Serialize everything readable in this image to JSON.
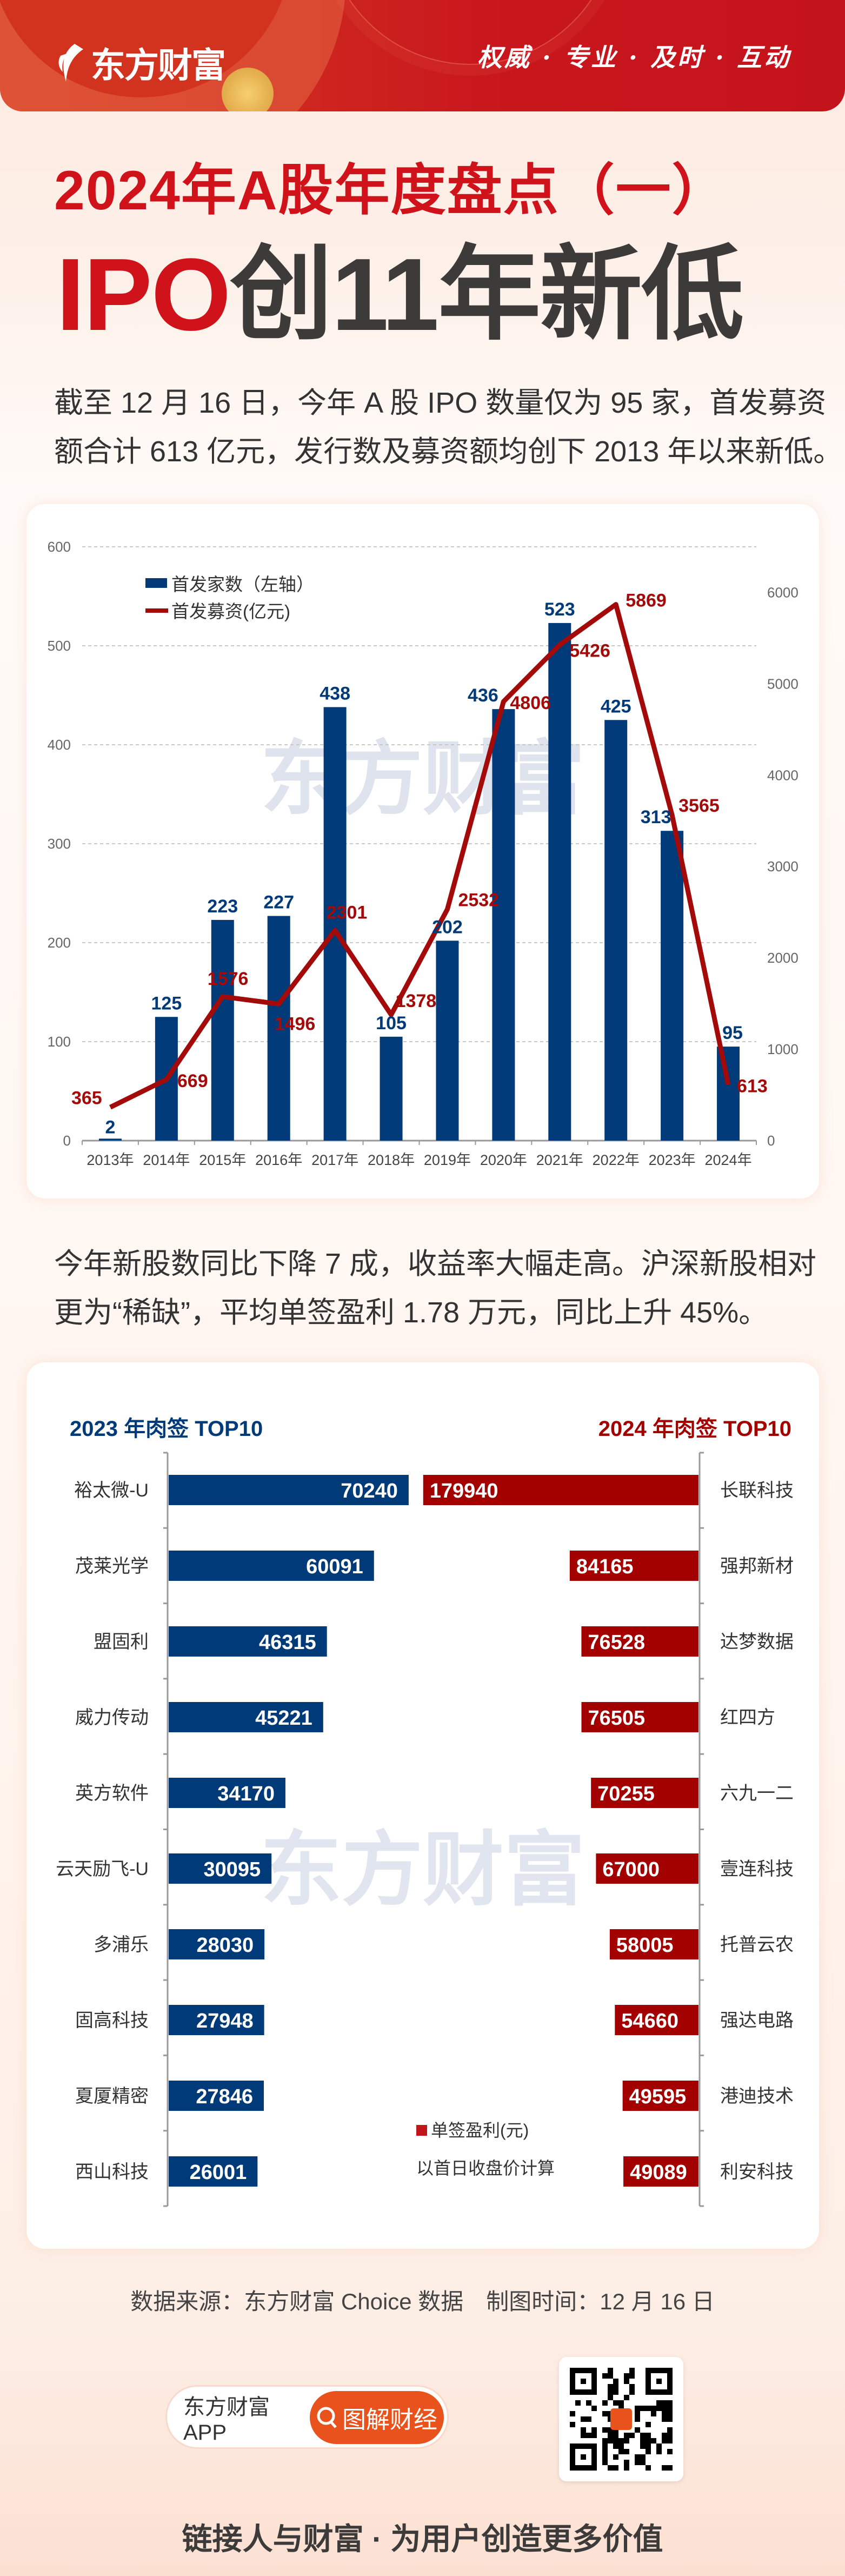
{
  "header": {
    "logo_text": "东方财富",
    "slogan": "权威 · 专业 · 及时 · 互动"
  },
  "title": {
    "line1": "2024年A股年度盘点（一）",
    "line2_red": "IPO",
    "line2_dark": "创11年新低"
  },
  "intro": {
    "line1": "截至 12 月 16 日，今年 A 股 IPO 数量仅为 95 家，首发募资",
    "line2": "额合计 613 亿元，发行数及募资额均创下 2013 年以来新低。"
  },
  "summary": {
    "line1": "今年新股数同比下降 7 成，收益率大幅走高。沪深新股相对",
    "line2": "更为“稀缺”，平均单签盈利 1.78 万元，同比上升 45%。"
  },
  "watermark": "东方财富",
  "chart_data": [
    {
      "type": "bar+line",
      "categories": [
        "2013年",
        "2014年",
        "2015年",
        "2016年",
        "2017年",
        "2018年",
        "2019年",
        "2020年",
        "2021年",
        "2022年",
        "2023年",
        "2024年"
      ],
      "series": [
        {
          "name": "首发家数（左轴）",
          "type": "bar",
          "axis": "left",
          "color": "#003a78",
          "values": [
            2,
            125,
            223,
            227,
            438,
            105,
            202,
            436,
            523,
            425,
            313,
            95
          ]
        },
        {
          "name": "首发募资(亿元)",
          "type": "line",
          "axis": "right",
          "color": "#a30a0a",
          "values": [
            365,
            669,
            1576,
            1496,
            2301,
            1378,
            2532,
            4806,
            5426,
            5869,
            3565,
            613
          ]
        }
      ],
      "left_axis": {
        "ylim": [
          0,
          600
        ],
        "ticks": [
          "0",
          "100",
          "200",
          "300",
          "400",
          "500",
          "600"
        ]
      },
      "right_axis": {
        "ylim": [
          0,
          6500
        ],
        "ticks": [
          "0",
          "1000",
          "2000",
          "3000",
          "4000",
          "5000",
          "6000"
        ]
      },
      "grid": true,
      "legend": "top-left"
    },
    {
      "type": "bar",
      "orientation": "horizontal-butterfly",
      "left": {
        "title": "2023 年肉签 TOP10",
        "color": "#003a78",
        "categories": [
          "裕太微-U",
          "茂莱光学",
          "盟固利",
          "威力传动",
          "英方软件",
          "云天励飞-U",
          "多浦乐",
          "固高科技",
          "夏厦精密",
          "西山科技"
        ],
        "values": [
          70240,
          60091,
          46315,
          45221,
          34170,
          30095,
          28030,
          27948,
          27846,
          26001
        ]
      },
      "right": {
        "title": "2024 年肉签 TOP10",
        "color": "#a30000",
        "categories": [
          "长联科技",
          "强邦新材",
          "达梦数据",
          "红四方",
          "六九一二",
          "壹连科技",
          "托普云农",
          "强达电路",
          "港迪技术",
          "利安科技"
        ],
        "values": [
          179940,
          84165,
          76528,
          76505,
          70255,
          67000,
          58005,
          54660,
          49595,
          49089
        ]
      },
      "legend_label": "单签盈利(元)",
      "note": "以首日收盘价计算"
    }
  ],
  "footer": {
    "source": "数据来源：东方财富 Choice 数据　制图时间：12 月 16 日",
    "app_label": "东方财富APP",
    "search_button": "图解财经",
    "slogan": "链接人与财富 · 为用户创造更多价值"
  }
}
